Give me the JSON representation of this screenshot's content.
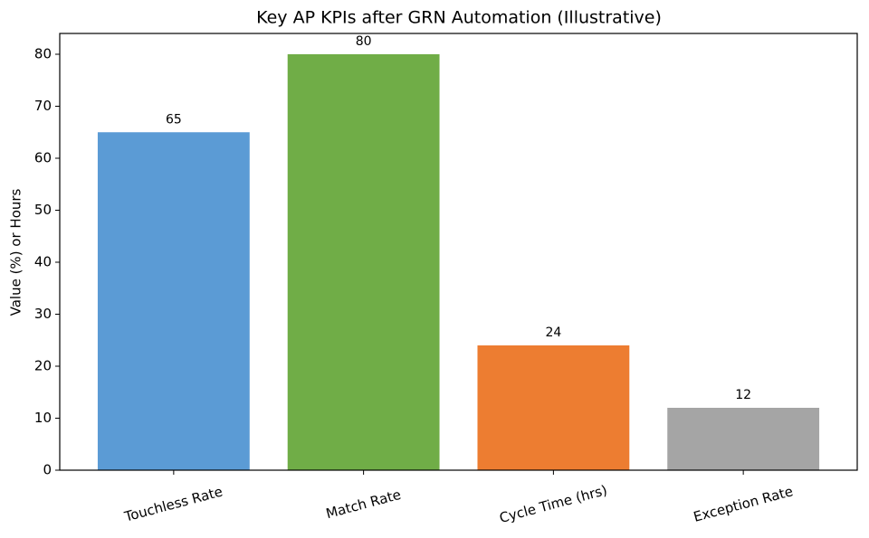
{
  "chart_data": {
    "type": "bar",
    "title": "Key AP KPIs after GRN Automation (Illustrative)",
    "y_label": "Value (%) or Hours",
    "categories": [
      "Touchless Rate",
      "Match Rate",
      "Cycle Time (hrs)",
      "Exception Rate"
    ],
    "values": [
      65,
      80,
      24,
      12
    ],
    "colors": [
      "#5b9bd5",
      "#70ad47",
      "#ed7d31",
      "#a5a5a5"
    ],
    "ylim": [
      0,
      84
    ],
    "yticks": [
      0,
      10,
      20,
      30,
      40,
      50,
      60,
      70,
      80
    ],
    "grid": false
  }
}
